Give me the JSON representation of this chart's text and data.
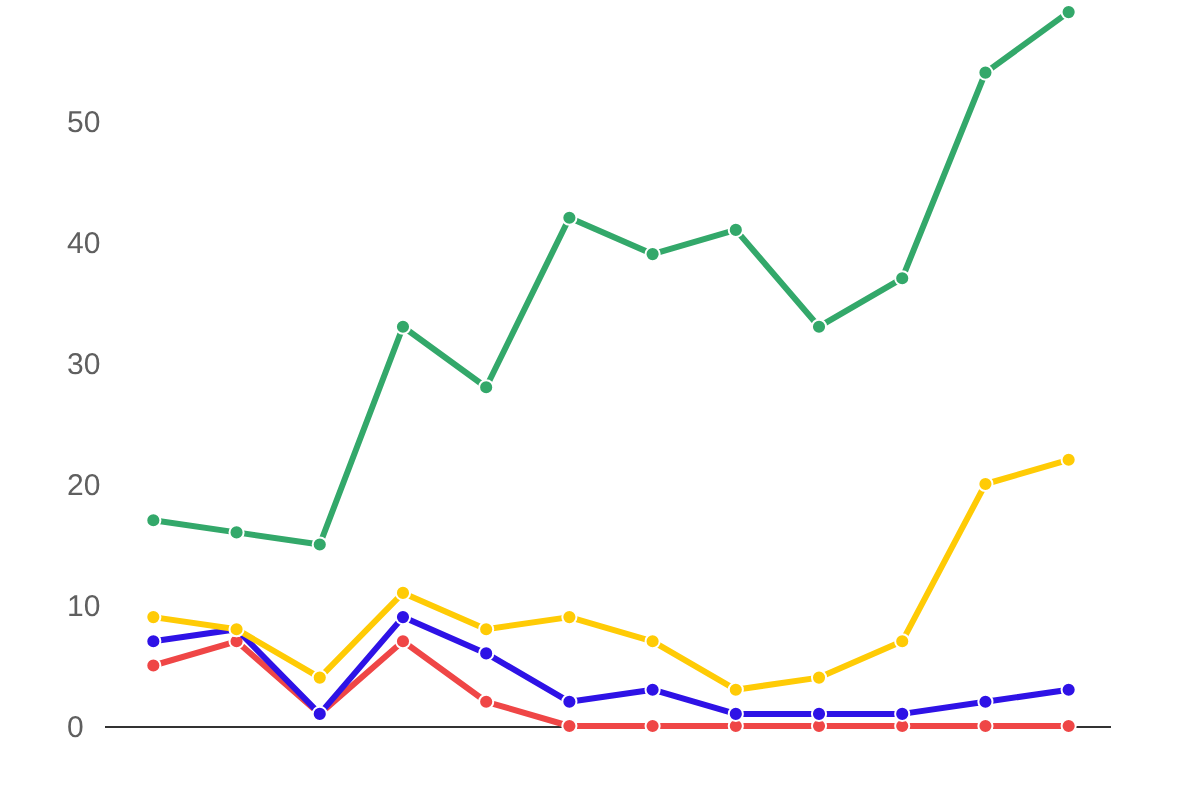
{
  "chart_data": {
    "type": "line",
    "categories": [
      null,
      null,
      null,
      null,
      null,
      null,
      null,
      null,
      null,
      null,
      null,
      null
    ],
    "series": [
      {
        "color": "#ef4646",
        "values": [
          5,
          7,
          1,
          7,
          2,
          0,
          0,
          0,
          0,
          0,
          0,
          0
        ]
      },
      {
        "color": "#2e12e6",
        "values": [
          7,
          8,
          1,
          9,
          6,
          2,
          3,
          1,
          1,
          1,
          2,
          3
        ]
      },
      {
        "color": "#ffcb05",
        "values": [
          9,
          8,
          4,
          11,
          8,
          9,
          7,
          3,
          4,
          7,
          20,
          22
        ]
      },
      {
        "color": "#33a86a",
        "values": [
          17,
          16,
          15,
          33,
          28,
          42,
          39,
          41,
          33,
          37,
          54,
          59
        ]
      }
    ],
    "ylim": [
      0,
      60
    ],
    "yticks": [
      0,
      10,
      20,
      30,
      40,
      50
    ],
    "marker": "circle"
  }
}
